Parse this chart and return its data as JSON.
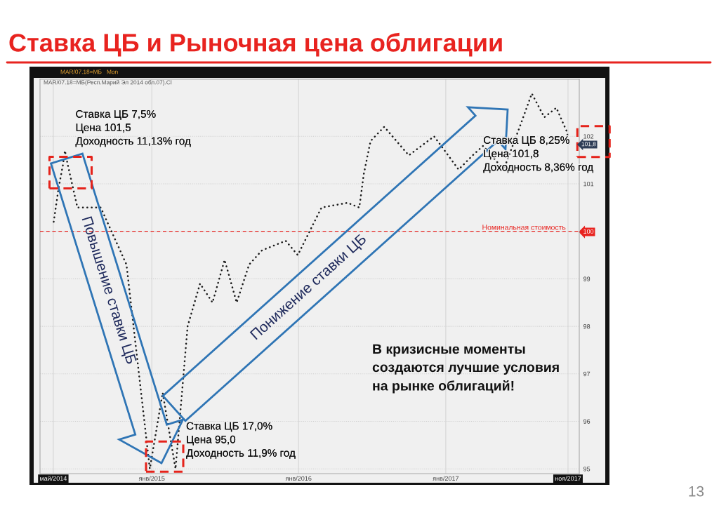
{
  "chart_data": {
    "type": "line",
    "title": "Ставка ЦБ и Рыночная цена облигации",
    "subtitle": "MAR/07.18=МБ(Респ.Марий Эл 2014 обл.07).Cl",
    "x": [
      "2014-05-02",
      "2014-05-14",
      "2014-05-25",
      "2014-05-30",
      "2014-06-06",
      "2014-06-30",
      "2014-07-30",
      "2014-08-27",
      "2014-10-30",
      "2014-12-27",
      "2015-01-28",
      "2015-03-01",
      "2015-03-13",
      "2015-03-31",
      "2015-05-01",
      "2015-06-01",
      "2015-07-01",
      "2015-07-31",
      "2015-08-31",
      "2015-10-02",
      "2015-11-30",
      "2015-12-30",
      "2016-02-27",
      "2016-05-02",
      "2016-05-31",
      "2016-06-11",
      "2016-06-28",
      "2016-08-01",
      "2016-10-01",
      "2016-12-03",
      "2017-02-02",
      "2017-03-09",
      "2017-04-04",
      "2017-05-25",
      "2017-07-04",
      "2017-08-03",
      "2017-09-03",
      "2017-10-03",
      "2017-10-29",
      "2017-11-05"
    ],
    "values": [
      100.2,
      100.9,
      101.4,
      101.7,
      101.4,
      100.5,
      100.5,
      100.5,
      99.3,
      95.0,
      96.6,
      95.0,
      96.2,
      98.0,
      98.9,
      98.5,
      99.4,
      98.5,
      99.3,
      99.6,
      99.8,
      99.5,
      100.5,
      100.6,
      100.5,
      101.2,
      101.9,
      102.2,
      101.6,
      102.0,
      101.3,
      101.6,
      101.8,
      101.3,
      102.2,
      102.9,
      102.4,
      102.6,
      102.1,
      101.8
    ],
    "color": "#1a1a1a",
    "line_style": "dotted",
    "xlim": [
      "2014-03-29",
      "2017-11-29"
    ],
    "xticks": [
      {
        "value": "2014-05-01",
        "label": "май/2014"
      },
      {
        "value": "2015-01-01",
        "label": "янв/2015"
      },
      {
        "value": "2016-01-01",
        "label": "янв/2016"
      },
      {
        "value": "2017-01-01",
        "label": "янв/2017"
      },
      {
        "value": "2017-11-01",
        "label": "ноя/2017"
      }
    ],
    "ylim": [
      94.9,
      103.2
    ],
    "yticks": [
      95,
      96,
      97,
      98,
      99,
      100,
      101,
      102
    ],
    "grid": true,
    "ref_lines": [
      {
        "axis": "y",
        "value": 100,
        "label": "Номинальная стоимость",
        "color": "#e8231f",
        "line_style": "dashed"
      }
    ],
    "annotations": [
      {
        "text": "Ставка ЦБ 7,5%\nЦена 101,5\nДоходность 11,13% год",
        "x": "2014-05-30",
        "y": 101.7
      },
      {
        "text": "Ставка ЦБ 17,0%\nЦена 95,0\nДоходность 11,9% год",
        "x": "2015-03-01",
        "y": 95.0
      },
      {
        "text": "Ставка ЦБ 8,25%\nЦена 101,8\nДоходность 8,36% год",
        "x": "2017-11-05",
        "y": 101.8
      },
      "101,8",
      "Повышение ставки ЦБ",
      "Понижение ставки ЦБ",
      "В кризисные моменты\nсоздаются лучшие условия\nна рынке облигаций!",
      "MAR/07.18=МБ",
      "Mon",
      "13"
    ]
  }
}
